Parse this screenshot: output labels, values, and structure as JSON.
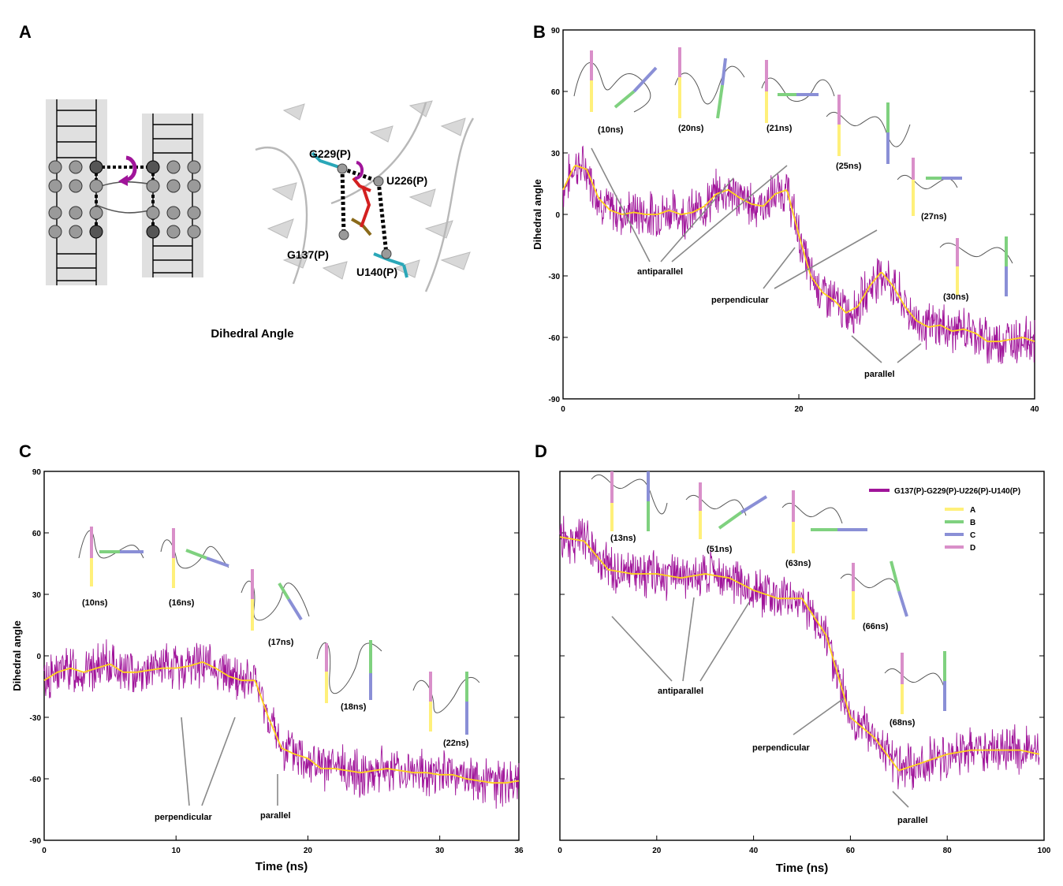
{
  "panels": {
    "A": "A",
    "B": "B",
    "C": "C",
    "D": "D"
  },
  "panel_a": {
    "title": "Dihedral Angle",
    "residues": [
      "G229(P)",
      "U226(P)",
      "G137(P)",
      "U140(P)"
    ]
  },
  "colors": {
    "raw_line": "#a0149a",
    "smooth_line": "#ffd21a",
    "A": "#fff07a",
    "B": "#7fd17f",
    "C": "#8a8fd6",
    "D": "#d98fc9",
    "arrow": "#888888"
  },
  "chart_data": [
    {
      "panel": "B",
      "type": "line",
      "ylabel": "Dihedral angle",
      "xlabel": "",
      "xlim": [
        0,
        40
      ],
      "ylim": [
        -90,
        90
      ],
      "xticks": [
        0,
        20,
        40
      ],
      "yticks": [
        -90,
        -60,
        -30,
        0,
        30,
        60,
        90
      ],
      "series": [
        {
          "x": [
            0,
            1,
            2,
            3,
            4,
            5,
            6,
            7,
            8,
            9,
            10,
            11,
            12,
            13,
            14,
            15,
            16,
            17,
            18,
            19,
            20,
            21,
            22,
            23,
            24,
            25,
            26,
            27,
            28,
            29,
            30,
            31,
            32,
            33,
            34,
            35,
            36,
            37,
            38,
            39,
            40
          ],
          "y": [
            12,
            24,
            22,
            8,
            2,
            0,
            1,
            0,
            0,
            2,
            0,
            1,
            4,
            10,
            12,
            8,
            5,
            4,
            10,
            12,
            -10,
            -30,
            -38,
            -42,
            -48,
            -45,
            -35,
            -28,
            -35,
            -45,
            -52,
            -55,
            -54,
            -57,
            -56,
            -58,
            -62,
            -62,
            -61,
            -60,
            -62
          ]
        }
      ],
      "annotations": [
        "antiparallel",
        "perpendicular",
        "parallel"
      ],
      "snapshots": [
        "(10ns)",
        "(20ns)",
        "(21ns)",
        "(25ns)",
        "(27ns)",
        "(30ns)"
      ]
    },
    {
      "panel": "C",
      "type": "line",
      "ylabel": "Dihedral angle",
      "xlabel": "Time (ns)",
      "xlim": [
        0,
        36
      ],
      "ylim": [
        -90,
        90
      ],
      "xticks": [
        0,
        10,
        20,
        30,
        36
      ],
      "yticks": [
        -90,
        -60,
        -30,
        0,
        30,
        60,
        90
      ],
      "series": [
        {
          "x": [
            0,
            1,
            2,
            3,
            4,
            5,
            6,
            7,
            8,
            9,
            10,
            11,
            12,
            13,
            14,
            15,
            16,
            17,
            18,
            19,
            20,
            21,
            22,
            23,
            24,
            25,
            26,
            27,
            28,
            29,
            30,
            31,
            32,
            33,
            34,
            35,
            36
          ],
          "y": [
            -12,
            -8,
            -6,
            -8,
            -6,
            -4,
            -8,
            -8,
            -7,
            -6,
            -6,
            -5,
            -3,
            -6,
            -10,
            -12,
            -12,
            -30,
            -45,
            -48,
            -50,
            -55,
            -55,
            -56,
            -57,
            -56,
            -55,
            -56,
            -57,
            -57,
            -58,
            -58,
            -60,
            -61,
            -62,
            -62,
            -61
          ]
        }
      ],
      "annotations": [
        "perpendicular",
        "parallel"
      ],
      "snapshots": [
        "(10ns)",
        "(16ns)",
        "(17ns)",
        "(18ns)",
        "(22ns)"
      ]
    },
    {
      "panel": "D",
      "type": "line",
      "xlabel": "Time (ns)",
      "xlim": [
        0,
        100
      ],
      "xticks": [
        0,
        20,
        40,
        60,
        80,
        100
      ],
      "series": [
        {
          "name": "G137(P)-G229(P)-U226(P)-U140(P)",
          "x": [
            0,
            5,
            10,
            15,
            20,
            25,
            30,
            35,
            40,
            45,
            50,
            55,
            60,
            65,
            70,
            75,
            80,
            85,
            90,
            95,
            99
          ],
          "y": [
            58,
            56,
            42,
            40,
            40,
            38,
            40,
            38,
            32,
            28,
            28,
            10,
            -30,
            -40,
            -56,
            -52,
            -48,
            -46,
            -46,
            -46,
            -48
          ]
        }
      ],
      "legend_extra": [
        "A",
        "B",
        "C",
        "D"
      ],
      "legend_position": "top-right",
      "annotations": [
        "antiparallel",
        "perpendicular",
        "parallel"
      ],
      "snapshots": [
        "(13ns)",
        "(51ns)",
        "(63ns)",
        "(66ns)",
        "(68ns)"
      ]
    }
  ]
}
